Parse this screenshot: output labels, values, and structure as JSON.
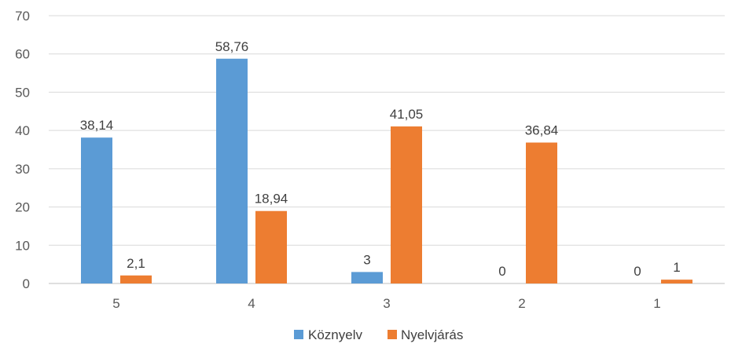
{
  "chart_data": {
    "type": "bar",
    "categories": [
      "5",
      "4",
      "3",
      "2",
      "1"
    ],
    "series": [
      {
        "name": "Köznyelv",
        "color": "#5b9bd5",
        "values": [
          38.14,
          58.76,
          3,
          0,
          0
        ],
        "labels": [
          "38,14",
          "58,76",
          "3",
          "0",
          "0"
        ]
      },
      {
        "name": "Nyelvjárás",
        "color": "#ed7d31",
        "values": [
          2.1,
          18.94,
          41.05,
          36.84,
          1
        ],
        "labels": [
          "2,1",
          "18,94",
          "41,05",
          "36,84",
          "1"
        ]
      }
    ],
    "ylim": [
      0,
      70
    ],
    "yticks": [
      0,
      10,
      20,
      30,
      40,
      50,
      60,
      70
    ],
    "title": "",
    "xlabel": "",
    "ylabel": "",
    "grid": true,
    "legend_position": "bottom"
  }
}
